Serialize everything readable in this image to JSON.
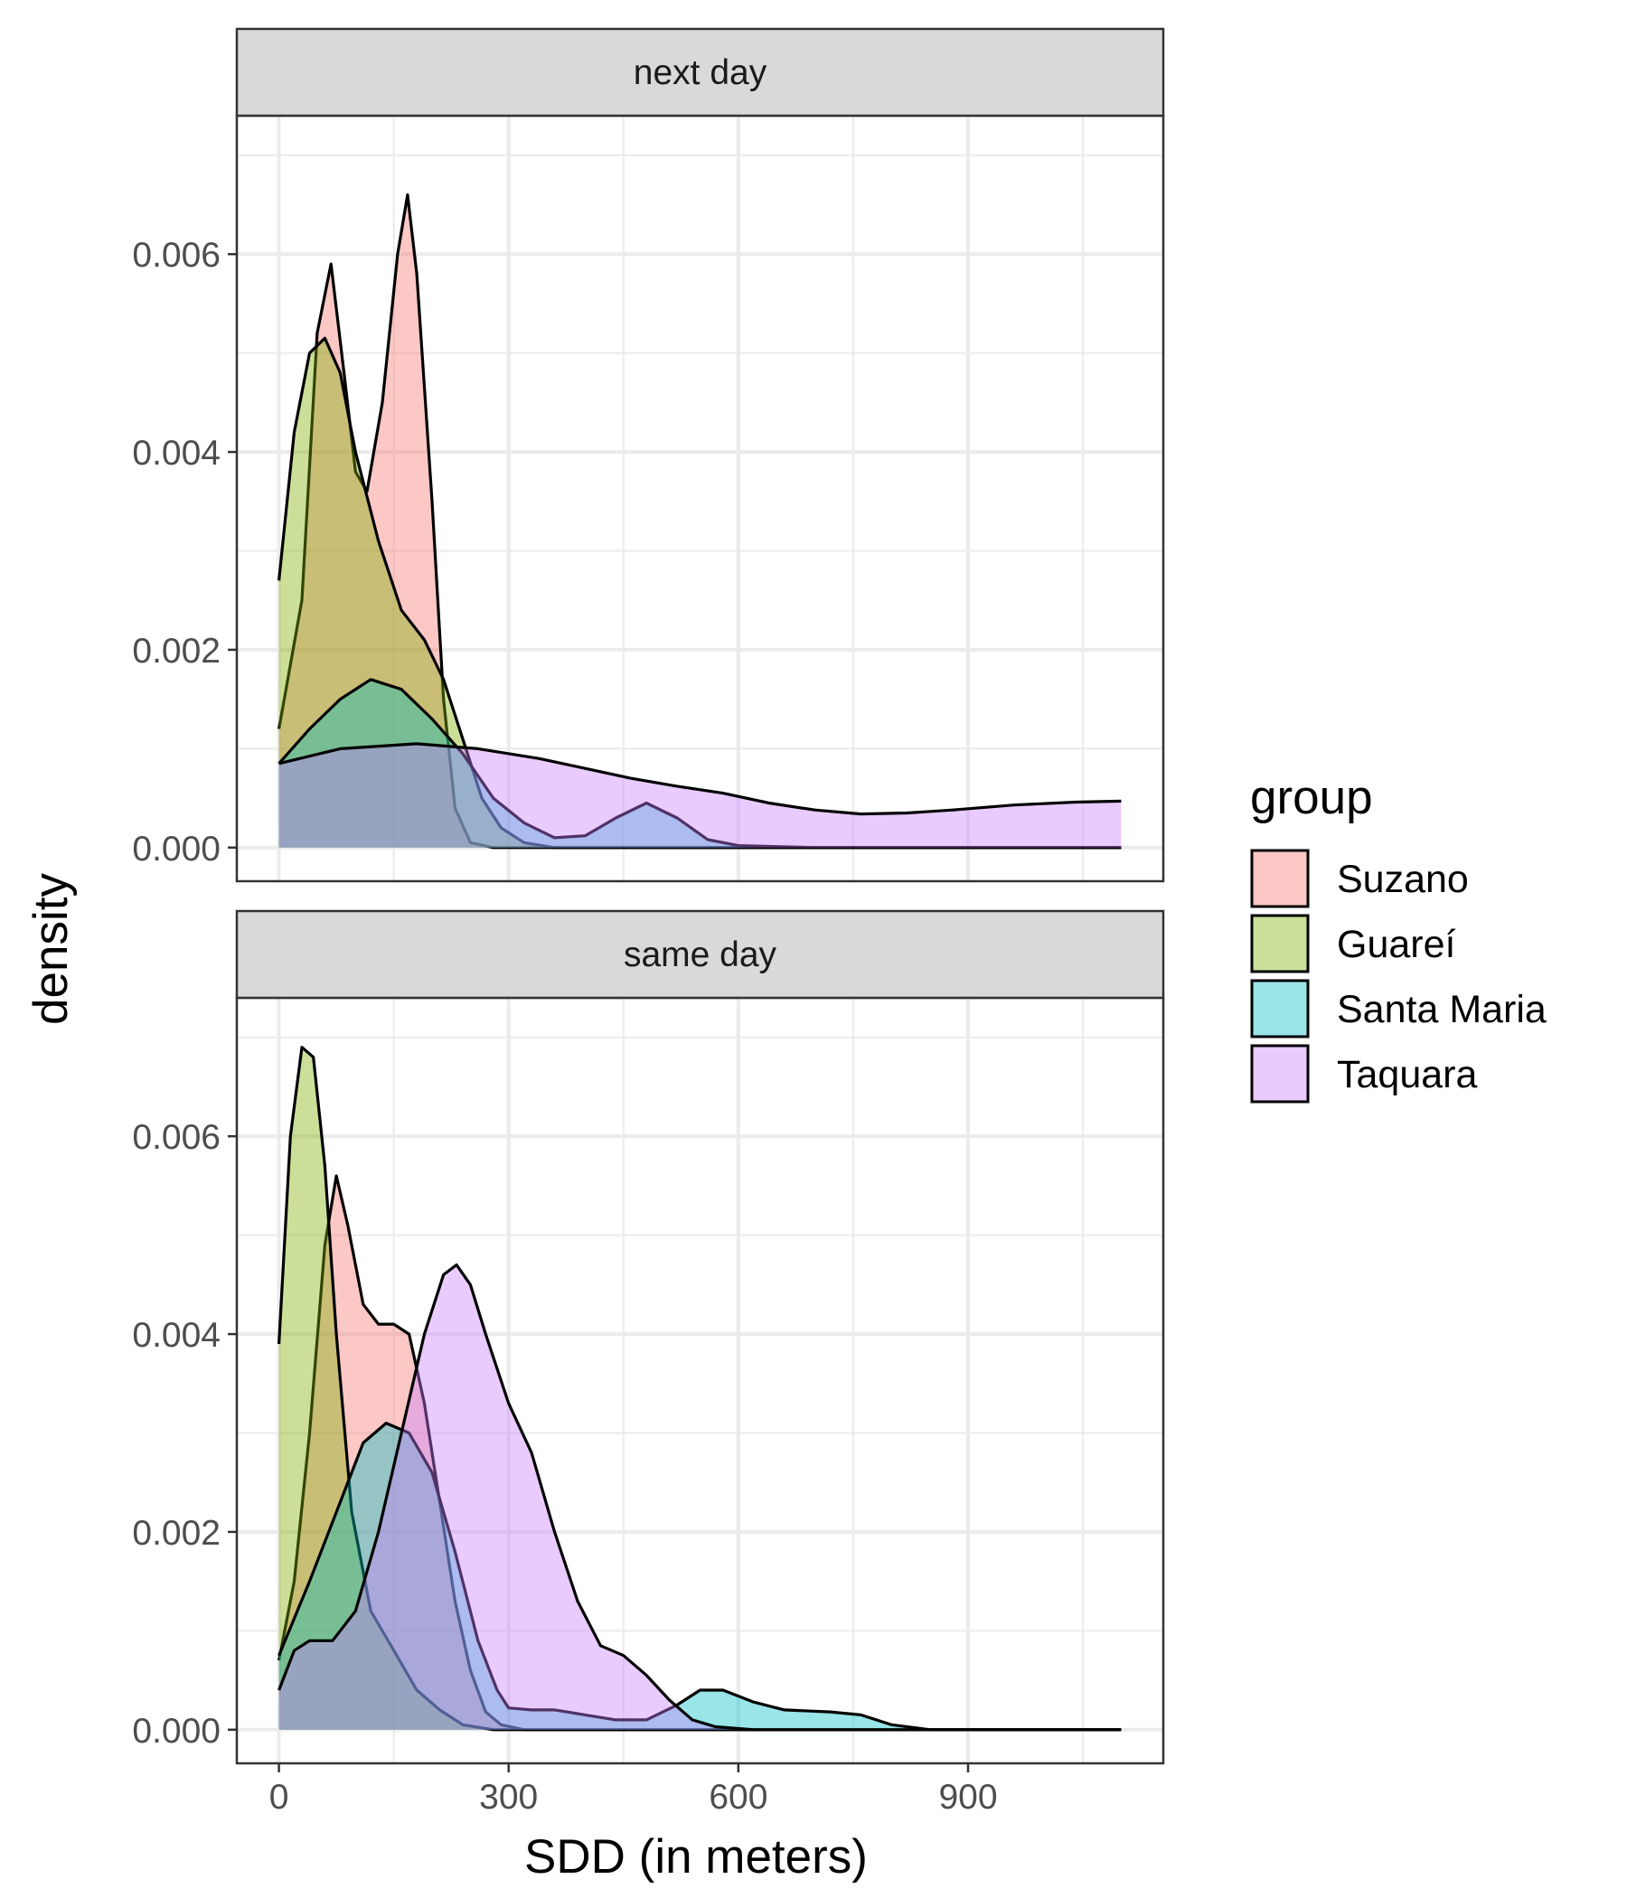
{
  "chart_data": {
    "type": "area",
    "subtype": "faceted density plot",
    "xlabel": "SDD (in meters)",
    "ylabel": "density",
    "x_ticks": [
      0,
      300,
      600,
      900
    ],
    "y_ticks": [
      0.0,
      0.002,
      0.004,
      0.006
    ],
    "y_tick_labels": [
      "0.000",
      "0.002",
      "0.004",
      "0.006"
    ],
    "xlim": [
      -55,
      1155
    ],
    "ylim": [
      -0.00034,
      0.0074
    ],
    "grid": true,
    "legend": {
      "title": "group",
      "position": "right",
      "entries": [
        "Suzano",
        "Guareí",
        "Santa Maria",
        "Taquara"
      ]
    },
    "colors": {
      "Suzano": "#F8766D",
      "Guareí": "#7CAE00",
      "Santa Maria": "#00BFC4",
      "Taquara": "#C77CFF"
    },
    "fill_opacity": 0.4,
    "facets": [
      {
        "label": "next day",
        "series": [
          {
            "name": "Suzano",
            "points": [
              [
                0,
                0.0012
              ],
              [
                30,
                0.0025
              ],
              [
                50,
                0.0052
              ],
              [
                68,
                0.0059
              ],
              [
                85,
                0.0048
              ],
              [
                100,
                0.0038
              ],
              [
                115,
                0.0036
              ],
              [
                135,
                0.0045
              ],
              [
                155,
                0.006
              ],
              [
                168,
                0.0066
              ],
              [
                180,
                0.0058
              ],
              [
                200,
                0.0035
              ],
              [
                215,
                0.0015
              ],
              [
                230,
                0.0004
              ],
              [
                250,
                5e-05
              ],
              [
                280,
                0.0
              ],
              [
                350,
                0.0
              ],
              [
                600,
                0.0
              ],
              [
                1100,
                0.0
              ]
            ]
          },
          {
            "name": "Guareí",
            "points": [
              [
                0,
                0.0027
              ],
              [
                20,
                0.0042
              ],
              [
                40,
                0.005
              ],
              [
                60,
                0.00515
              ],
              [
                80,
                0.0048
              ],
              [
                100,
                0.004
              ],
              [
                130,
                0.0031
              ],
              [
                160,
                0.0024
              ],
              [
                190,
                0.0021
              ],
              [
                215,
                0.0017
              ],
              [
                240,
                0.0011
              ],
              [
                265,
                0.0005
              ],
              [
                290,
                0.0002
              ],
              [
                320,
                5e-05
              ],
              [
                360,
                0.0
              ],
              [
                500,
                0.0
              ],
              [
                1100,
                0.0
              ]
            ]
          },
          {
            "name": "Santa Maria",
            "points": [
              [
                0,
                0.00085
              ],
              [
                40,
                0.0012
              ],
              [
                80,
                0.0015
              ],
              [
                120,
                0.0017
              ],
              [
                160,
                0.0016
              ],
              [
                200,
                0.0013
              ],
              [
                240,
                0.00095
              ],
              [
                280,
                0.0005
              ],
              [
                320,
                0.00025
              ],
              [
                360,
                0.0001
              ],
              [
                400,
                0.00012
              ],
              [
                440,
                0.0003
              ],
              [
                480,
                0.00045
              ],
              [
                520,
                0.0003
              ],
              [
                560,
                8e-05
              ],
              [
                600,
                2e-05
              ],
              [
                700,
                0.0
              ],
              [
                1100,
                0.0
              ]
            ]
          },
          {
            "name": "Taquara",
            "points": [
              [
                0,
                0.00085
              ],
              [
                80,
                0.001
              ],
              [
                180,
                0.00105
              ],
              [
                260,
                0.001
              ],
              [
                340,
                0.0009
              ],
              [
                400,
                0.0008
              ],
              [
                460,
                0.0007
              ],
              [
                520,
                0.00062
              ],
              [
                580,
                0.00055
              ],
              [
                640,
                0.00045
              ],
              [
                700,
                0.00038
              ],
              [
                760,
                0.00034
              ],
              [
                820,
                0.00035
              ],
              [
                880,
                0.00038
              ],
              [
                960,
                0.00043
              ],
              [
                1040,
                0.00046
              ],
              [
                1100,
                0.00047
              ]
            ]
          }
        ]
      },
      {
        "label": "same day",
        "series": [
          {
            "name": "Suzano",
            "points": [
              [
                0,
                0.0007
              ],
              [
                20,
                0.0015
              ],
              [
                40,
                0.003
              ],
              [
                60,
                0.0049
              ],
              [
                75,
                0.0056
              ],
              [
                90,
                0.0051
              ],
              [
                110,
                0.0043
              ],
              [
                130,
                0.0041
              ],
              [
                150,
                0.0041
              ],
              [
                170,
                0.004
              ],
              [
                190,
                0.0033
              ],
              [
                210,
                0.0023
              ],
              [
                230,
                0.0013
              ],
              [
                250,
                0.0006
              ],
              [
                270,
                0.00018
              ],
              [
                290,
                5e-05
              ],
              [
                320,
                0.0
              ],
              [
                500,
                0.0
              ],
              [
                1100,
                0.0
              ]
            ]
          },
          {
            "name": "Guareí",
            "points": [
              [
                0,
                0.0039
              ],
              [
                15,
                0.006
              ],
              [
                30,
                0.0069
              ],
              [
                45,
                0.0068
              ],
              [
                60,
                0.0057
              ],
              [
                75,
                0.004
              ],
              [
                95,
                0.0022
              ],
              [
                120,
                0.0012
              ],
              [
                150,
                0.0008
              ],
              [
                180,
                0.0004
              ],
              [
                210,
                0.0002
              ],
              [
                240,
                5e-05
              ],
              [
                280,
                0.0
              ],
              [
                400,
                0.0
              ],
              [
                1100,
                0.0
              ]
            ]
          },
          {
            "name": "Santa Maria",
            "points": [
              [
                0,
                0.00075
              ],
              [
                40,
                0.0015
              ],
              [
                80,
                0.0023
              ],
              [
                110,
                0.0029
              ],
              [
                140,
                0.0031
              ],
              [
                170,
                0.003
              ],
              [
                200,
                0.0026
              ],
              [
                230,
                0.0018
              ],
              [
                260,
                0.0009
              ],
              [
                285,
                0.0004
              ],
              [
                300,
                0.00022
              ],
              [
                330,
                0.0002
              ],
              [
                360,
                0.0002
              ],
              [
                400,
                0.00015
              ],
              [
                440,
                0.0001
              ],
              [
                480,
                0.0001
              ],
              [
                520,
                0.00025
              ],
              [
                550,
                0.0004
              ],
              [
                580,
                0.0004
              ],
              [
                620,
                0.00028
              ],
              [
                660,
                0.0002
              ],
              [
                720,
                0.00018
              ],
              [
                760,
                0.00015
              ],
              [
                800,
                5e-05
              ],
              [
                850,
                0.0
              ],
              [
                1100,
                0.0
              ]
            ]
          },
          {
            "name": "Taquara",
            "points": [
              [
                0,
                0.0004
              ],
              [
                20,
                0.0008
              ],
              [
                40,
                0.0009
              ],
              [
                70,
                0.0009
              ],
              [
                100,
                0.0012
              ],
              [
                130,
                0.002
              ],
              [
                160,
                0.003
              ],
              [
                190,
                0.004
              ],
              [
                215,
                0.0046
              ],
              [
                232,
                0.0047
              ],
              [
                250,
                0.0045
              ],
              [
                270,
                0.004
              ],
              [
                300,
                0.0033
              ],
              [
                330,
                0.0028
              ],
              [
                360,
                0.002
              ],
              [
                390,
                0.0013
              ],
              [
                420,
                0.00085
              ],
              [
                450,
                0.00075
              ],
              [
                480,
                0.00055
              ],
              [
                510,
                0.0003
              ],
              [
                540,
                0.0001
              ],
              [
                570,
                3e-05
              ],
              [
                620,
                0.0
              ],
              [
                1100,
                0.0
              ]
            ]
          }
        ]
      }
    ]
  }
}
